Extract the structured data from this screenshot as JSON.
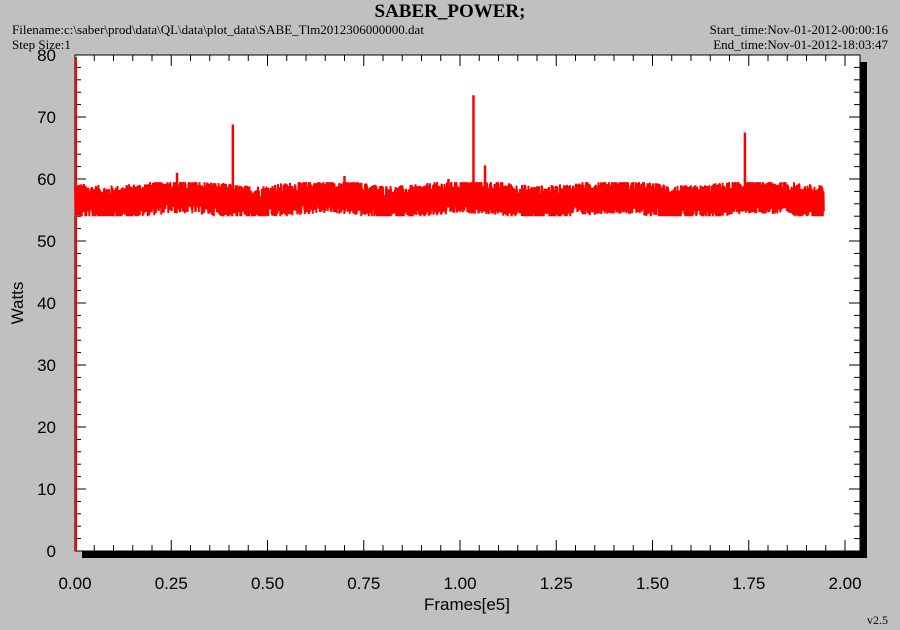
{
  "header": {
    "title": "SABER_POWER;",
    "filename": "Filename:c:\\saber\\prod\\data\\QL\\data\\plot_data\\SABE_Tlm2012306000000.dat",
    "step_size": "Step Size:1",
    "start_time": "Start_time:Nov-01-2012-00:00:16",
    "end_time": "End_time:Nov-01-2012-18:03:47"
  },
  "footer": {
    "version": "v2.5"
  },
  "chart_data": {
    "type": "line",
    "title": "SABER_POWER;",
    "xlabel": "Frames[e5]",
    "ylabel": "Watts",
    "xlim": [
      0.0,
      2.0
    ],
    "ylim": [
      0,
      80
    ],
    "x_ticks": [
      "0.00",
      "0.25",
      "0.50",
      "0.75",
      "1.00",
      "1.25",
      "1.50",
      "1.75",
      "2.00"
    ],
    "y_ticks": [
      "0",
      "10",
      "20",
      "30",
      "40",
      "50",
      "60",
      "70",
      "80"
    ],
    "grid": false,
    "legend": "none",
    "series": [
      {
        "color": "#ff0000",
        "x_range": [
          0.0,
          1.945
        ],
        "baseline": 56.7,
        "noise_band": [
          54.0,
          59.5
        ],
        "spikes": [
          {
            "x": 0.265,
            "y": 61.0
          },
          {
            "x": 0.41,
            "y": 68.8
          },
          {
            "x": 0.7,
            "y": 60.5
          },
          {
            "x": 0.97,
            "y": 60.0
          },
          {
            "x": 1.035,
            "y": 73.5
          },
          {
            "x": 1.065,
            "y": 62.2
          },
          {
            "x": 1.74,
            "y": 67.5
          }
        ]
      }
    ]
  }
}
